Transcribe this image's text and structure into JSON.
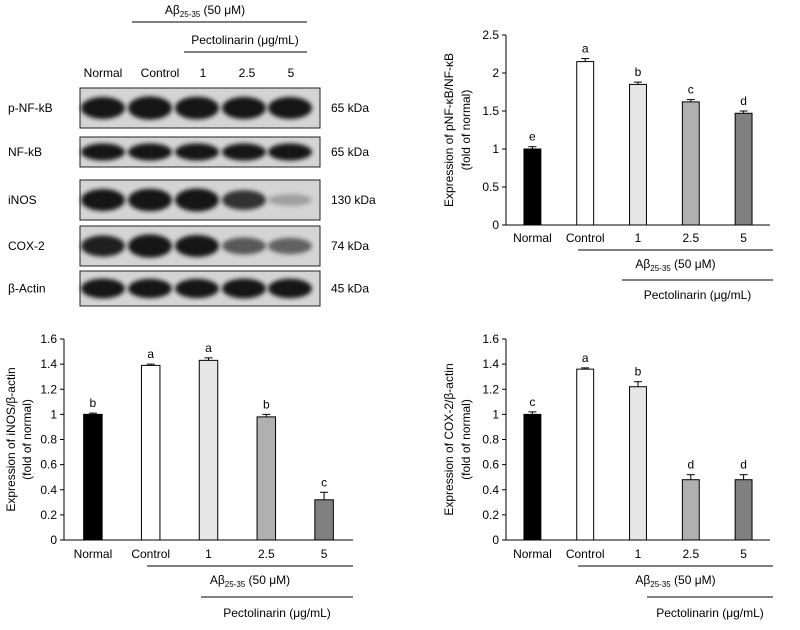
{
  "blot": {
    "treatment_label": "Aβ",
    "treatment_sub": "25-35",
    "treatment_conc": " (50 μM)",
    "drug_label": "Pectolinarin (μg/mL)",
    "lanes": [
      "Normal",
      "Control",
      "1",
      "2.5",
      "5"
    ],
    "rows": [
      {
        "protein": "p-NF-kB",
        "mw": "65 kDa",
        "intensity": [
          0.85,
          0.95,
          0.9,
          0.88,
          0.85
        ]
      },
      {
        "protein": "NF-kB",
        "mw": "65 kDa",
        "intensity": [
          0.9,
          0.9,
          0.9,
          0.9,
          0.9
        ]
      },
      {
        "protein": "iNOS",
        "mw": "130 kDa",
        "intensity": [
          0.85,
          0.9,
          0.92,
          0.7,
          0.12
        ]
      },
      {
        "protein": "COX-2",
        "mw": "74 kDa",
        "intensity": [
          0.8,
          0.95,
          0.85,
          0.5,
          0.45
        ]
      },
      {
        "protein": "β-Actin",
        "mw": "45 kDa",
        "intensity": [
          0.9,
          0.85,
          0.85,
          0.9,
          0.88
        ]
      }
    ]
  },
  "colors": {
    "bars": [
      "#000000",
      "#ffffff",
      "#e6e6e6",
      "#b0b0b0",
      "#808080"
    ],
    "band": "#151515",
    "blot_bg": "#d4d4d4"
  },
  "chart_data": [
    {
      "type": "bar",
      "categories": [
        "Normal",
        "Control",
        "1",
        "2.5",
        "5"
      ],
      "values": [
        1.0,
        2.15,
        1.85,
        1.62,
        1.47
      ],
      "errors": [
        0.03,
        0.04,
        0.03,
        0.03,
        0.03
      ],
      "letters": [
        "e",
        "a",
        "b",
        "c",
        "d"
      ],
      "ylabel_line1": "Expression of pNF-κB/NF-κB",
      "ylabel_line2": "(fold of normal)",
      "ylim": [
        0,
        2.5
      ],
      "yticks": [
        "0",
        "0.5",
        "1",
        "1.5",
        "2",
        "2.5"
      ],
      "ytick_values": [
        0,
        0.5,
        1,
        1.5,
        2,
        2.5
      ],
      "treatment_label": "Aβ",
      "treatment_sub": "25-35",
      "treatment_conc": " (50 μM)",
      "drug_label": "Pectolinarin (μg/mL)"
    },
    {
      "type": "bar",
      "categories": [
        "Normal",
        "Control",
        "1",
        "2.5",
        "5"
      ],
      "values": [
        1.0,
        1.39,
        1.43,
        0.98,
        0.32
      ],
      "errors": [
        0.01,
        0.01,
        0.02,
        0.02,
        0.06
      ],
      "letters": [
        "b",
        "a",
        "a",
        "b",
        "c"
      ],
      "ylabel_line1": "Expression of iNOS/β-actin",
      "ylabel_line2": "(fold of normal)",
      "ylim": [
        0,
        1.6
      ],
      "yticks": [
        "0",
        "0.2",
        "0.4",
        "0.6",
        "0.8",
        "1",
        "1.2",
        "1.4",
        "1.6"
      ],
      "ytick_values": [
        0,
        0.2,
        0.4,
        0.6,
        0.8,
        1,
        1.2,
        1.4,
        1.6
      ],
      "treatment_label": "Aβ",
      "treatment_sub": "25-35",
      "treatment_conc": " (50 μM)",
      "drug_label": "Pectolinarin (μg/mL)"
    },
    {
      "type": "bar",
      "categories": [
        "Normal",
        "Control",
        "1",
        "2.5",
        "5"
      ],
      "values": [
        1.0,
        1.36,
        1.22,
        0.48,
        0.48
      ],
      "errors": [
        0.02,
        0.01,
        0.04,
        0.04,
        0.04
      ],
      "letters": [
        "c",
        "a",
        "b",
        "d",
        "d"
      ],
      "ylabel_line1": "Expression of COX-2/β-actin",
      "ylabel_line2": "(fold of normal)",
      "ylim": [
        0,
        1.6
      ],
      "yticks": [
        "0",
        "0.2",
        "0.4",
        "0.6",
        "0.8",
        "1",
        "1.2",
        "1.4",
        "1.6"
      ],
      "ytick_values": [
        0,
        0.2,
        0.4,
        0.6,
        0.8,
        1,
        1.2,
        1.4,
        1.6
      ],
      "treatment_label": "Aβ",
      "treatment_sub": "25-35",
      "treatment_conc": " (50 μM)",
      "drug_label": "Pectolinarin (μg/mL)"
    }
  ]
}
